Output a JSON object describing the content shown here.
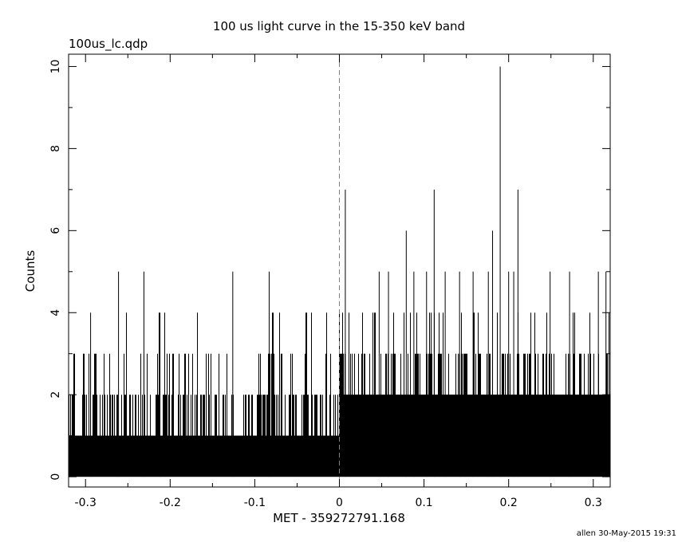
{
  "chart_data": {
    "type": "bar",
    "title": "100 us light curve in the 15-350 keV band",
    "subtitle": "100us_lc.qdp",
    "xlabel": "MET - 359272791.168",
    "ylabel": "Counts",
    "footer": "allen 30-May-2015 19:31",
    "xlim": [
      -0.32,
      0.32
    ],
    "ylim": [
      -0.25,
      10.3
    ],
    "x_ticks": [
      -0.3,
      -0.2,
      -0.1,
      0,
      0.1,
      0.2,
      0.3
    ],
    "x_tick_labels": [
      "-0.3",
      "-0.2",
      "-0.1",
      "0",
      "0.1",
      "0.2",
      "0.3"
    ],
    "y_ticks": [
      0,
      2,
      4,
      6,
      8,
      10
    ],
    "y_tick_labels": [
      "0",
      "2",
      "4",
      "6",
      "8",
      "10"
    ],
    "bin_width": 0.0001,
    "trigger_time": 0,
    "trigger_line_color": "#3399cc",
    "bar_color": "#000000",
    "series": [
      {
        "values_note_free": true,
        "peaks": [
          {
            "x": -0.294,
            "y": 4
          },
          {
            "x": -0.261,
            "y": 5
          },
          {
            "x": -0.231,
            "y": 5
          },
          {
            "x": -0.212,
            "y": 4
          },
          {
            "x": -0.126,
            "y": 5
          },
          {
            "x": -0.083,
            "y": 5
          },
          {
            "x": 0.007,
            "y": 7
          },
          {
            "x": 0.047,
            "y": 5
          },
          {
            "x": 0.058,
            "y": 5
          },
          {
            "x": 0.079,
            "y": 6
          },
          {
            "x": 0.088,
            "y": 5
          },
          {
            "x": 0.103,
            "y": 5
          },
          {
            "x": 0.112,
            "y": 7
          },
          {
            "x": 0.125,
            "y": 5
          },
          {
            "x": 0.142,
            "y": 5
          },
          {
            "x": 0.158,
            "y": 5
          },
          {
            "x": 0.176,
            "y": 5
          },
          {
            "x": 0.181,
            "y": 6
          },
          {
            "x": 0.19,
            "y": 10
          },
          {
            "x": 0.2,
            "y": 5
          },
          {
            "x": 0.206,
            "y": 5
          },
          {
            "x": 0.211,
            "y": 7
          },
          {
            "x": 0.249,
            "y": 5
          },
          {
            "x": 0.272,
            "y": 5
          },
          {
            "x": 0.306,
            "y": 5
          },
          {
            "x": 0.315,
            "y": 5
          }
        ],
        "baseline_before_trigger": 1,
        "baseline_after_trigger": 2
      }
    ]
  }
}
